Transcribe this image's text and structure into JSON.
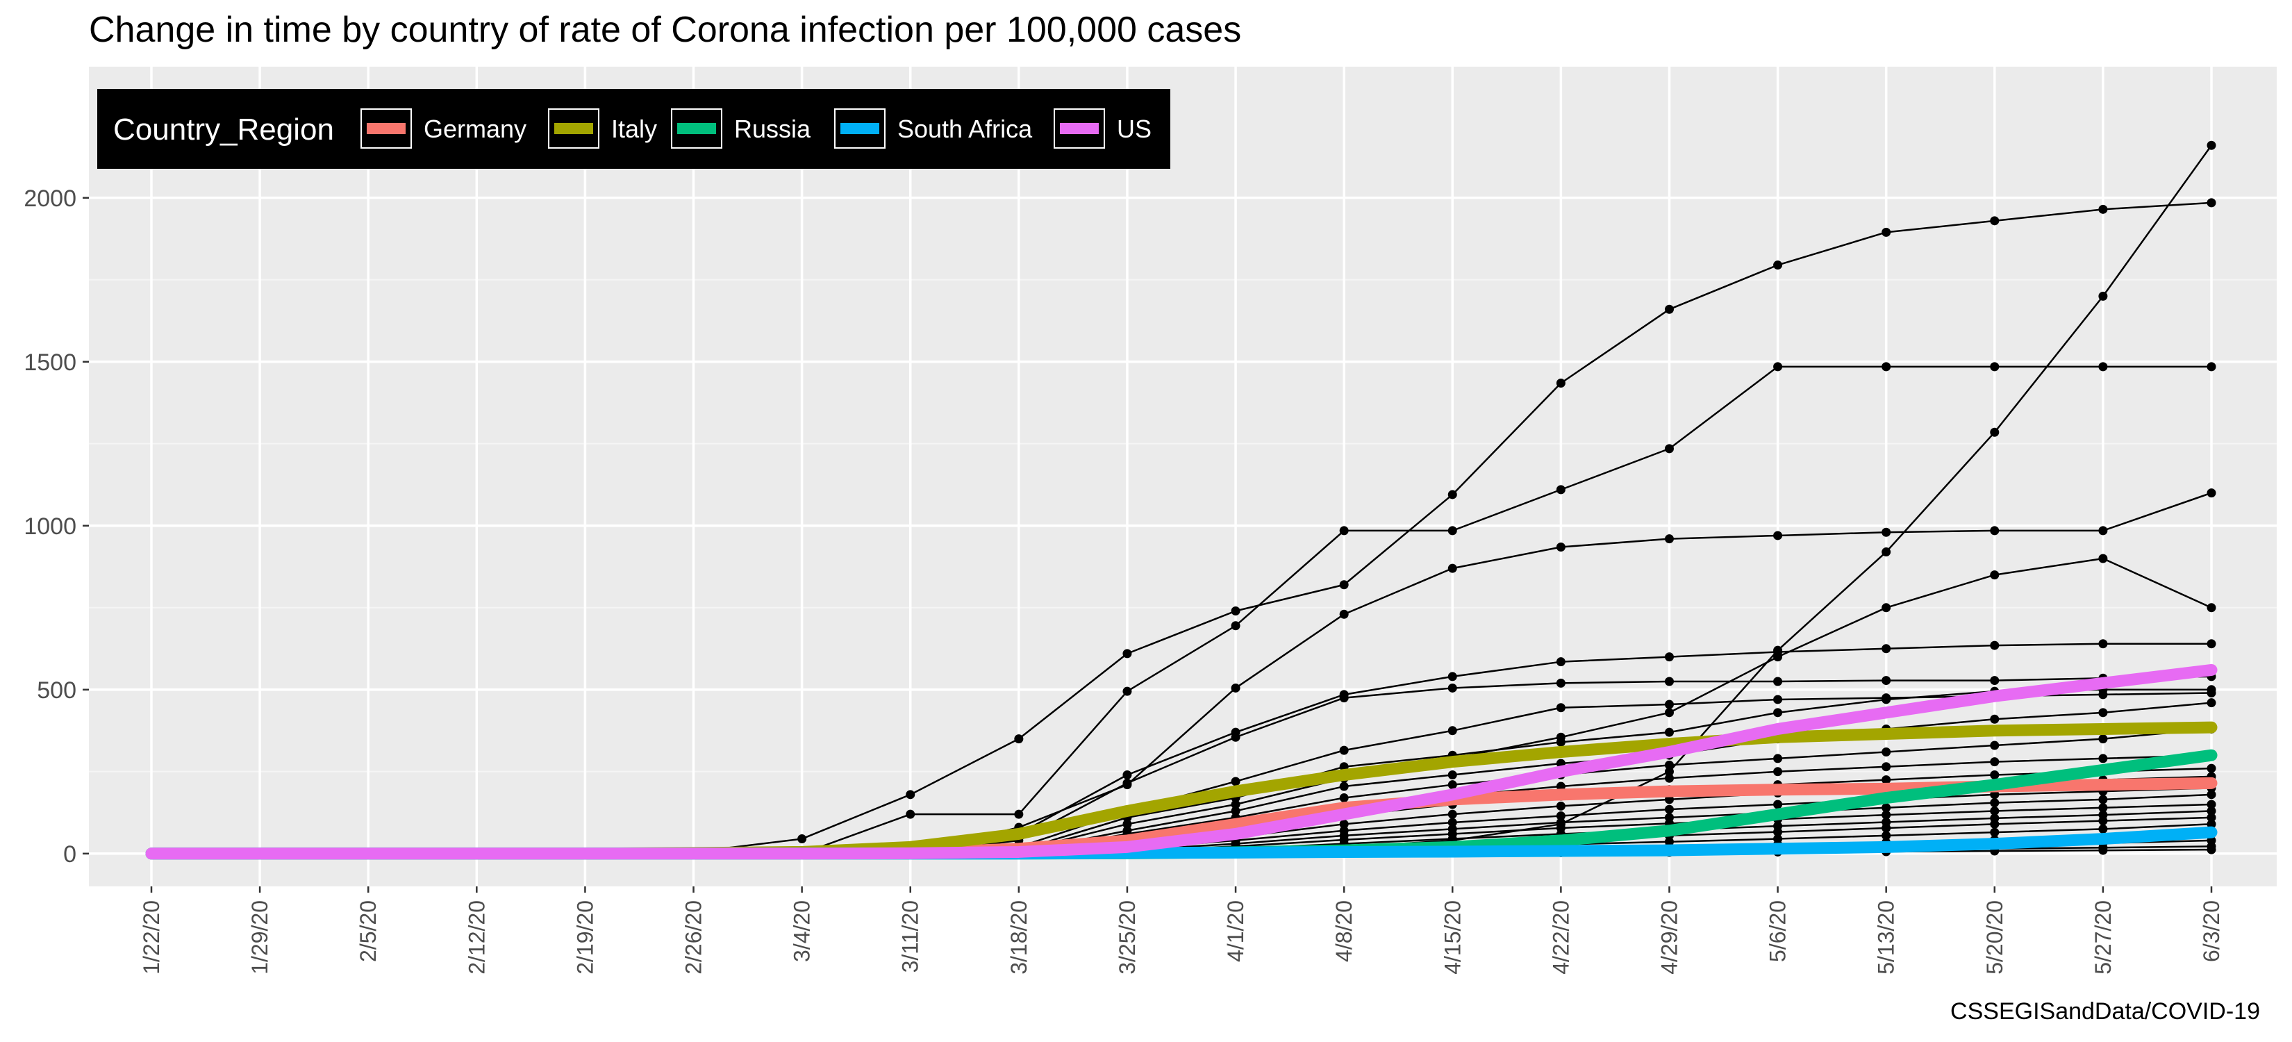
{
  "chart_data": {
    "type": "line",
    "title": "Change in time by country of rate of Corona infection per 100,000 cases",
    "caption": "CSSEGISandData/COVID-19",
    "xlabel": "",
    "ylabel": "",
    "categories": [
      "1/22/20",
      "1/29/20",
      "2/5/20",
      "2/12/20",
      "2/19/20",
      "2/26/20",
      "3/4/20",
      "3/11/20",
      "3/18/20",
      "3/25/20",
      "4/1/20",
      "4/8/20",
      "4/15/20",
      "4/22/20",
      "4/29/20",
      "5/6/20",
      "5/13/20",
      "5/20/20",
      "5/27/20",
      "6/3/20"
    ],
    "y_ticks": [
      0,
      500,
      1000,
      1500,
      2000
    ],
    "ylim": [
      -100,
      2400
    ],
    "grid": true,
    "legend": {
      "title": "Country_Region",
      "position": "top-left",
      "entries": [
        {
          "name": "Germany",
          "color": "#F8766D"
        },
        {
          "name": "Italy",
          "color": "#A3A500"
        },
        {
          "name": "Russia",
          "color": "#00BF7D"
        },
        {
          "name": "South Africa",
          "color": "#00B0F6"
        },
        {
          "name": "US",
          "color": "#E76BF3"
        }
      ]
    },
    "highlight_series": [
      {
        "name": "Germany",
        "color": "#F8766D",
        "values": [
          0,
          0,
          0,
          0,
          0,
          0,
          0,
          2,
          15,
          40,
          90,
          140,
          165,
          180,
          190,
          195,
          198,
          205,
          210,
          215
        ]
      },
      {
        "name": "Italy",
        "color": "#A3A500",
        "values": [
          0,
          0,
          0,
          0,
          0,
          2,
          5,
          20,
          60,
          130,
          190,
          240,
          280,
          310,
          335,
          355,
          365,
          375,
          380,
          385
        ]
      },
      {
        "name": "Russia",
        "color": "#00BF7D",
        "values": [
          0,
          0,
          0,
          0,
          0,
          0,
          0,
          0,
          0,
          1,
          4,
          10,
          20,
          40,
          70,
          120,
          170,
          210,
          255,
          300
        ]
      },
      {
        "name": "South Africa",
        "color": "#00B0F6",
        "values": [
          0,
          0,
          0,
          0,
          0,
          0,
          0,
          0,
          0,
          2,
          3,
          5,
          6,
          8,
          10,
          15,
          20,
          30,
          45,
          65
        ]
      },
      {
        "name": "US",
        "color": "#E76BF3",
        "values": [
          0,
          0,
          0,
          0,
          0,
          0,
          0,
          1,
          5,
          20,
          60,
          120,
          180,
          250,
          310,
          380,
          430,
          480,
          520,
          560
        ]
      }
    ],
    "background_series": [
      {
        "values": [
          0,
          0,
          0,
          0,
          0,
          5,
          45,
          180,
          350,
          610,
          740,
          820,
          1095,
          1435,
          1660,
          1795,
          1895,
          1930,
          1965,
          1985
        ]
      },
      {
        "values": [
          0,
          0,
          0,
          0,
          0,
          0,
          0,
          0,
          0,
          0,
          0,
          20,
          40,
          90,
          250,
          620,
          920,
          1285,
          1700,
          2160
        ]
      },
      {
        "values": [
          0,
          0,
          0,
          0,
          0,
          0,
          0,
          120,
          120,
          495,
          695,
          985,
          985,
          1110,
          1235,
          1485,
          1485,
          1485,
          1485,
          1485
        ]
      },
      {
        "values": [
          0,
          0,
          0,
          0,
          0,
          0,
          0,
          0,
          80,
          210,
          505,
          730,
          870,
          935,
          960,
          970,
          980,
          985,
          985,
          1100
        ]
      },
      {
        "values": [
          0,
          0,
          0,
          0,
          0,
          0,
          0,
          0,
          60,
          240,
          370,
          485,
          540,
          585,
          600,
          615,
          625,
          635,
          640,
          640
        ]
      },
      {
        "values": [
          0,
          0,
          0,
          0,
          0,
          0,
          0,
          0,
          40,
          215,
          355,
          475,
          505,
          520,
          525,
          525,
          528,
          528,
          535,
          540
        ]
      },
      {
        "values": [
          0,
          0,
          0,
          0,
          0,
          0,
          0,
          0,
          20,
          130,
          220,
          315,
          375,
          445,
          455,
          470,
          475,
          480,
          485,
          490
        ]
      },
      {
        "values": [
          0,
          0,
          0,
          0,
          0,
          0,
          0,
          0,
          10,
          110,
          170,
          265,
          300,
          340,
          370,
          430,
          470,
          495,
          500,
          500
        ]
      },
      {
        "values": [
          0,
          0,
          0,
          0,
          0,
          0,
          0,
          0,
          8,
          90,
          150,
          230,
          290,
          355,
          430,
          600,
          750,
          850,
          900,
          750
        ]
      },
      {
        "values": [
          0,
          0,
          0,
          0,
          0,
          0,
          0,
          0,
          5,
          70,
          130,
          205,
          240,
          275,
          300,
          350,
          380,
          410,
          430,
          460
        ]
      },
      {
        "values": [
          0,
          0,
          0,
          0,
          0,
          0,
          0,
          0,
          3,
          60,
          110,
          170,
          210,
          240,
          270,
          290,
          310,
          330,
          350,
          380
        ]
      },
      {
        "values": [
          0,
          0,
          0,
          0,
          0,
          0,
          0,
          0,
          2,
          40,
          90,
          140,
          175,
          205,
          230,
          250,
          265,
          280,
          290,
          300
        ]
      },
      {
        "values": [
          0,
          0,
          0,
          0,
          0,
          0,
          0,
          0,
          1,
          30,
          70,
          115,
          150,
          175,
          195,
          210,
          225,
          240,
          250,
          260
        ]
      },
      {
        "values": [
          0,
          0,
          0,
          0,
          0,
          0,
          0,
          0,
          1,
          20,
          50,
          90,
          120,
          145,
          165,
          185,
          200,
          215,
          225,
          235
        ]
      },
      {
        "values": [
          0,
          0,
          0,
          0,
          0,
          0,
          0,
          0,
          0,
          15,
          40,
          70,
          95,
          115,
          135,
          150,
          165,
          180,
          190,
          200
        ]
      },
      {
        "values": [
          0,
          0,
          0,
          0,
          0,
          0,
          0,
          0,
          0,
          10,
          30,
          55,
          75,
          95,
          110,
          125,
          140,
          155,
          165,
          180
        ]
      },
      {
        "values": [
          0,
          0,
          0,
          0,
          0,
          0,
          0,
          0,
          0,
          8,
          22,
          42,
          60,
          78,
          92,
          105,
          118,
          130,
          140,
          150
        ]
      },
      {
        "values": [
          0,
          0,
          0,
          0,
          0,
          0,
          0,
          0,
          0,
          5,
          15,
          30,
          45,
          60,
          72,
          84,
          96,
          108,
          118,
          130
        ]
      },
      {
        "values": [
          0,
          0,
          0,
          0,
          0,
          0,
          0,
          0,
          0,
          3,
          10,
          20,
          32,
          44,
          55,
          66,
          78,
          90,
          100,
          110
        ]
      },
      {
        "values": [
          0,
          0,
          0,
          0,
          0,
          0,
          0,
          0,
          0,
          2,
          6,
          12,
          20,
          28,
          36,
          45,
          55,
          65,
          75,
          90
        ]
      },
      {
        "values": [
          0,
          0,
          0,
          0,
          0,
          0,
          0,
          0,
          0,
          1,
          4,
          8,
          12,
          16,
          22,
          28,
          34,
          42,
          50,
          60
        ]
      },
      {
        "values": [
          0,
          0,
          0,
          0,
          0,
          0,
          0,
          0,
          0,
          0,
          2,
          4,
          6,
          9,
          12,
          16,
          20,
          26,
          32,
          40
        ]
      },
      {
        "values": [
          0,
          0,
          0,
          0,
          0,
          0,
          0,
          0,
          0,
          0,
          1,
          2,
          3,
          5,
          7,
          9,
          12,
          15,
          18,
          22
        ]
      },
      {
        "values": [
          0,
          0,
          0,
          0,
          0,
          0,
          0,
          0,
          0,
          0,
          0,
          1,
          2,
          3,
          4,
          5,
          6,
          8,
          10,
          12
        ]
      }
    ]
  }
}
